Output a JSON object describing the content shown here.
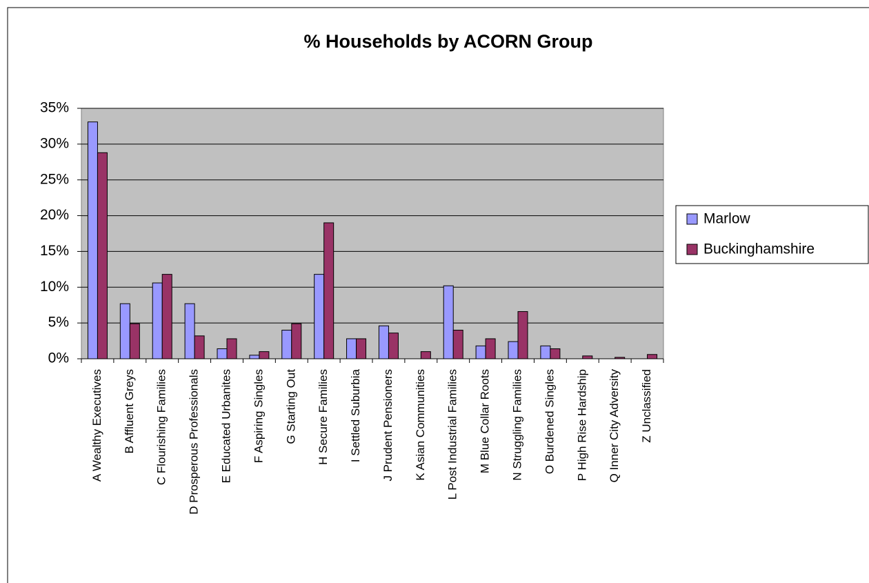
{
  "chart_data": {
    "type": "bar",
    "title": "% Households by ACORN Group",
    "categories": [
      "A Wealthy Executives",
      "B Affluent Greys",
      "C Flourishing Families",
      "D Prosperous Professionals",
      "E Educated Urbanites",
      "F Aspiring Singles",
      "G Starting Out",
      "H Secure Families",
      "I Settled Suburbia",
      "J Prudent Pensioners",
      "K Asian Communities",
      "L Post Industrial Families",
      "M Blue Collar Roots",
      "N Struggling Families",
      "O Burdened Singles",
      "P High Rise Hardship",
      "Q Inner City Adversity",
      "Z Unclassified"
    ],
    "series": [
      {
        "name": "Marlow",
        "color": "#9999ff",
        "values": [
          33.1,
          7.7,
          10.6,
          7.7,
          1.4,
          0.5,
          4.0,
          11.8,
          2.8,
          4.6,
          0,
          10.2,
          1.8,
          2.4,
          1.8,
          0,
          0,
          0
        ]
      },
      {
        "name": "Buckinghamshire",
        "color": "#993366",
        "values": [
          28.8,
          4.9,
          11.8,
          3.2,
          2.8,
          1.0,
          4.9,
          19.0,
          2.8,
          3.6,
          1.0,
          4.0,
          2.8,
          6.6,
          1.4,
          0.4,
          0.2,
          0.6
        ]
      }
    ],
    "ylim": [
      0,
      35
    ],
    "yticks": [
      {
        "value": 0,
        "label": "0%"
      },
      {
        "value": 5,
        "label": "5%"
      },
      {
        "value": 10,
        "label": "10%"
      },
      {
        "value": 15,
        "label": "15%"
      },
      {
        "value": 20,
        "label": "20%"
      },
      {
        "value": 25,
        "label": "25%"
      },
      {
        "value": 30,
        "label": "30%"
      },
      {
        "value": 35,
        "label": "35%"
      }
    ],
    "grid": true,
    "legend": "right"
  }
}
